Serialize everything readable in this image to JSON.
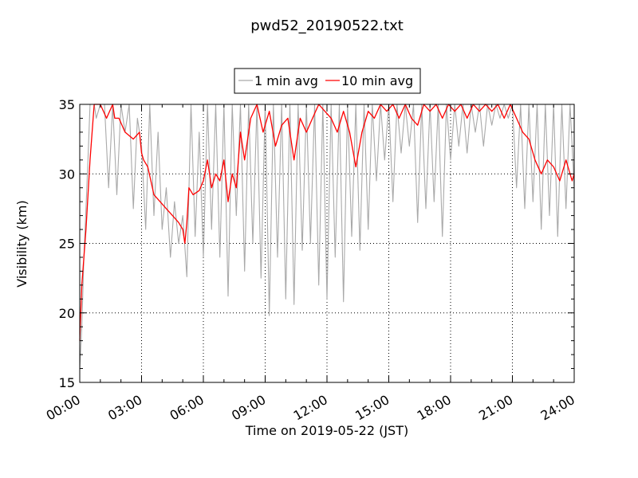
{
  "chart_data": {
    "type": "line",
    "title": "pwd52_20190522.txt",
    "xlabel": "Time on 2019-05-22 (JST)",
    "ylabel": "Visibility (km)",
    "xlim": [
      "00:00",
      "24:00"
    ],
    "ylim": [
      15,
      35
    ],
    "x_ticks": [
      "00:00",
      "03:00",
      "06:00",
      "09:00",
      "12:00",
      "15:00",
      "18:00",
      "21:00",
      "24:00"
    ],
    "y_ticks": [
      15,
      20,
      25,
      30,
      35
    ],
    "grid": true,
    "legend": {
      "placement": "top-center",
      "entries": [
        "1 min avg",
        "10 min avg"
      ]
    },
    "series": [
      {
        "name": "1 min avg",
        "color": "#a9a9a9",
        "x_hours": [
          0.0,
          0.1,
          0.2,
          0.3,
          0.4,
          0.5,
          0.6,
          0.7,
          0.8,
          1.0,
          1.2,
          1.4,
          1.6,
          1.8,
          2.0,
          2.2,
          2.4,
          2.6,
          2.8,
          3.0,
          3.2,
          3.4,
          3.6,
          3.8,
          4.0,
          4.2,
          4.4,
          4.6,
          4.8,
          5.0,
          5.2,
          5.4,
          5.6,
          5.8,
          6.0,
          6.2,
          6.4,
          6.6,
          6.8,
          7.0,
          7.2,
          7.4,
          7.6,
          7.8,
          8.0,
          8.2,
          8.4,
          8.6,
          8.8,
          9.0,
          9.2,
          9.4,
          9.6,
          9.8,
          10.0,
          10.2,
          10.4,
          10.6,
          10.8,
          11.0,
          11.2,
          11.4,
          11.6,
          11.8,
          12.0,
          12.2,
          12.4,
          12.6,
          12.8,
          13.0,
          13.2,
          13.4,
          13.6,
          13.8,
          14.0,
          14.2,
          14.4,
          14.6,
          14.8,
          15.0,
          15.2,
          15.4,
          15.6,
          15.8,
          16.0,
          16.2,
          16.4,
          16.6,
          16.8,
          17.0,
          17.2,
          17.4,
          17.6,
          17.8,
          18.0,
          18.2,
          18.4,
          18.6,
          18.8,
          19.0,
          19.2,
          19.4,
          19.6,
          19.8,
          20.0,
          20.2,
          20.4,
          20.6,
          20.8,
          21.0,
          21.2,
          21.4,
          21.6,
          21.8,
          22.0,
          22.2,
          22.4,
          22.6,
          22.8,
          23.0,
          23.2,
          23.4,
          23.6,
          23.8,
          24.0
        ],
        "values": [
          16.0,
          19.0,
          24.0,
          27.5,
          31.0,
          35.0,
          35.0,
          35.0,
          34.0,
          35.0,
          35.0,
          29.0,
          35.0,
          28.5,
          35.0,
          33.0,
          35.0,
          27.5,
          34.0,
          32.0,
          26.0,
          35.0,
          27.0,
          33.0,
          26.0,
          29.0,
          24.0,
          28.0,
          25.0,
          27.0,
          22.6,
          35.0,
          25.5,
          33.0,
          24.0,
          35.0,
          26.0,
          35.0,
          24.0,
          35.0,
          21.2,
          35.0,
          27.0,
          35.0,
          23.0,
          35.0,
          25.0,
          35.0,
          22.5,
          35.0,
          19.8,
          35.0,
          24.0,
          35.0,
          21.0,
          35.0,
          20.6,
          35.0,
          24.5,
          35.0,
          25.0,
          35.0,
          22.0,
          35.0,
          21.0,
          35.0,
          24.0,
          35.0,
          20.8,
          35.0,
          25.5,
          35.0,
          24.5,
          35.0,
          26.0,
          35.0,
          29.5,
          35.0,
          31.0,
          35.0,
          28.0,
          35.0,
          31.5,
          35.0,
          32.0,
          35.0,
          26.5,
          35.0,
          27.5,
          35.0,
          28.0,
          35.0,
          25.5,
          35.0,
          31.0,
          35.0,
          32.0,
          35.0,
          31.5,
          35.0,
          33.0,
          35.0,
          32.0,
          35.0,
          33.5,
          35.0,
          34.0,
          35.0,
          34.0,
          35.0,
          29.0,
          35.0,
          27.5,
          35.0,
          28.0,
          35.0,
          26.0,
          35.0,
          27.0,
          35.0,
          25.5,
          35.0,
          27.5,
          35.0,
          29.0
        ]
      },
      {
        "name": "10 min avg",
        "color": "#ff0000",
        "x_hours": [
          0.0,
          0.1,
          0.2,
          0.3,
          0.5,
          0.7,
          1.0,
          1.3,
          1.6,
          1.7,
          1.9,
          2.2,
          2.6,
          2.9,
          3.0,
          3.1,
          3.3,
          3.6,
          3.9,
          4.2,
          4.5,
          4.8,
          5.0,
          5.1,
          5.2,
          5.3,
          5.5,
          5.8,
          6.0,
          6.2,
          6.4,
          6.6,
          6.8,
          7.0,
          7.2,
          7.4,
          7.6,
          7.8,
          8.0,
          8.3,
          8.6,
          8.9,
          9.2,
          9.5,
          9.8,
          10.1,
          10.4,
          10.7,
          11.0,
          11.3,
          11.6,
          11.9,
          12.2,
          12.5,
          12.8,
          13.1,
          13.4,
          13.7,
          14.0,
          14.3,
          14.6,
          14.9,
          15.2,
          15.5,
          15.8,
          16.1,
          16.4,
          16.7,
          17.0,
          17.3,
          17.6,
          17.9,
          18.2,
          18.5,
          18.8,
          19.1,
          19.4,
          19.7,
          20.0,
          20.3,
          20.6,
          20.9,
          21.2,
          21.5,
          21.8,
          22.1,
          22.4,
          22.7,
          23.0,
          23.3,
          23.6,
          23.9,
          24.0
        ],
        "values": [
          18.0,
          22.0,
          24.0,
          26.0,
          31.0,
          35.0,
          35.0,
          34.0,
          35.0,
          34.0,
          34.0,
          33.0,
          32.5,
          33.0,
          31.5,
          31.0,
          30.5,
          28.5,
          28.0,
          27.5,
          27.0,
          26.5,
          26.0,
          25.0,
          26.5,
          29.0,
          28.5,
          28.8,
          29.5,
          31.0,
          29.0,
          30.0,
          29.5,
          31.0,
          28.0,
          30.0,
          29.0,
          33.0,
          31.0,
          34.0,
          35.0,
          33.0,
          34.5,
          32.0,
          33.5,
          34.0,
          31.0,
          34.0,
          33.0,
          34.0,
          35.0,
          34.5,
          34.0,
          33.0,
          34.5,
          33.0,
          30.5,
          33.0,
          34.5,
          34.0,
          35.0,
          34.5,
          35.0,
          34.0,
          35.0,
          34.0,
          33.5,
          35.0,
          34.5,
          35.0,
          34.0,
          35.0,
          34.5,
          35.0,
          34.0,
          35.0,
          34.5,
          35.0,
          34.5,
          35.0,
          34.0,
          35.0,
          34.0,
          33.0,
          32.5,
          31.0,
          30.0,
          31.0,
          30.5,
          29.5,
          31.0,
          29.5,
          30.0
        ]
      }
    ]
  }
}
